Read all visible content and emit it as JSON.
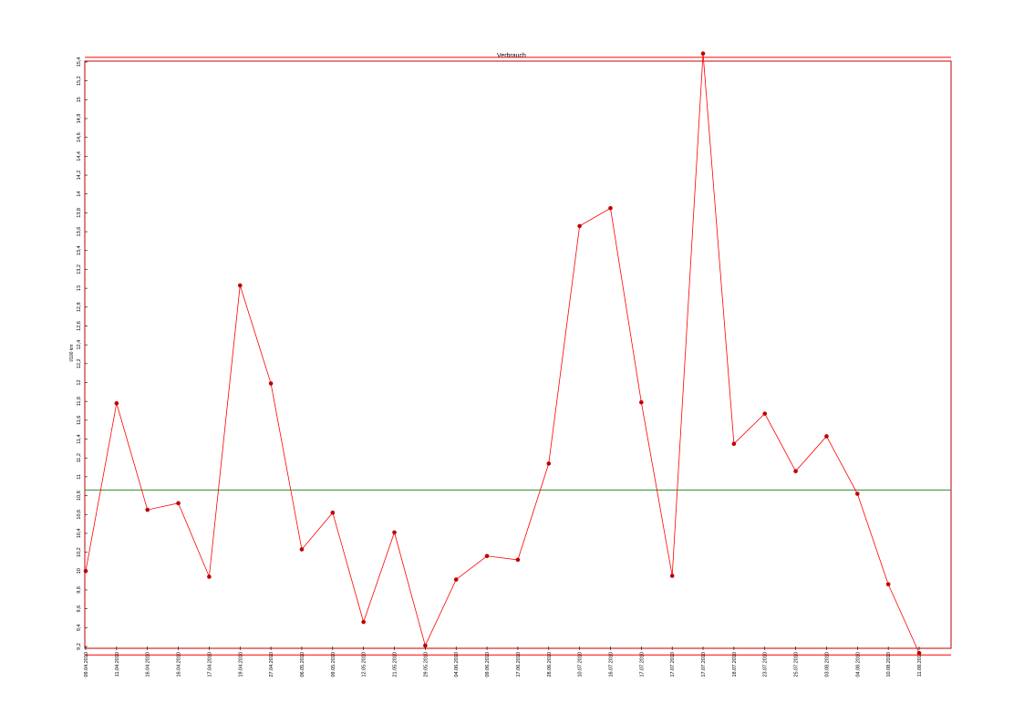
{
  "chart_data": {
    "type": "line",
    "title": "Verbrauch",
    "ylabel": "l/100 km",
    "xlabel": "",
    "ylim": [
      9.2,
      15.4
    ],
    "yticks": [
      "9,2",
      "9,4",
      "9,6",
      "9,8",
      "10",
      "10,2",
      "10,4",
      "10,6",
      "10,8",
      "11",
      "11,2",
      "11,4",
      "11,6",
      "11,8",
      "12",
      "12,2",
      "12,4",
      "12,6",
      "12,8",
      "13",
      "13,2",
      "13,4",
      "13,6",
      "13,8",
      "14",
      "14,2",
      "14,4",
      "14,6",
      "14,8",
      "15",
      "15,2",
      "15,4"
    ],
    "categories": [
      "09.04.2010",
      "11.04.2010",
      "16.04.2010",
      "16.04.2010",
      "17.04.2010",
      "19.04.2010",
      "27.04.2010",
      "06.05.2010",
      "09.05.2010",
      "12.05.2010",
      "21.05.2010",
      "29.05.2010",
      "04.06.2010",
      "09.06.2010",
      "17.06.2010",
      "28.06.2010",
      "10.07.2010",
      "16.07.2010",
      "17.07.2010",
      "17.07.2010",
      "17.07.2010",
      "18.07.2010",
      "23.07.2010",
      "25.07.2010",
      "03.08.2010",
      "04.08.2010",
      "10.08.2010",
      "11.08.2010"
    ],
    "series": [
      {
        "values": [
          10.0,
          11.78,
          10.65,
          10.72,
          9.94,
          13.03,
          11.99,
          10.23,
          10.62,
          9.46,
          10.41,
          9.21,
          9.91,
          10.16,
          10.12,
          11.14,
          13.66,
          13.85,
          11.79,
          9.95,
          15.49,
          11.35,
          11.67,
          11.06,
          11.43,
          10.82,
          9.86,
          9.13
        ],
        "color": "#ff0000",
        "marker_color": "#c00000"
      }
    ],
    "reference_lines": [
      {
        "value": 15.45,
        "color": "#ff0000"
      },
      {
        "value": 9.11,
        "color": "#ff0000"
      },
      {
        "value": 10.86,
        "color": "#2e8b2e"
      }
    ],
    "grid": false,
    "legend": "none",
    "frame_color": "#c00000"
  }
}
